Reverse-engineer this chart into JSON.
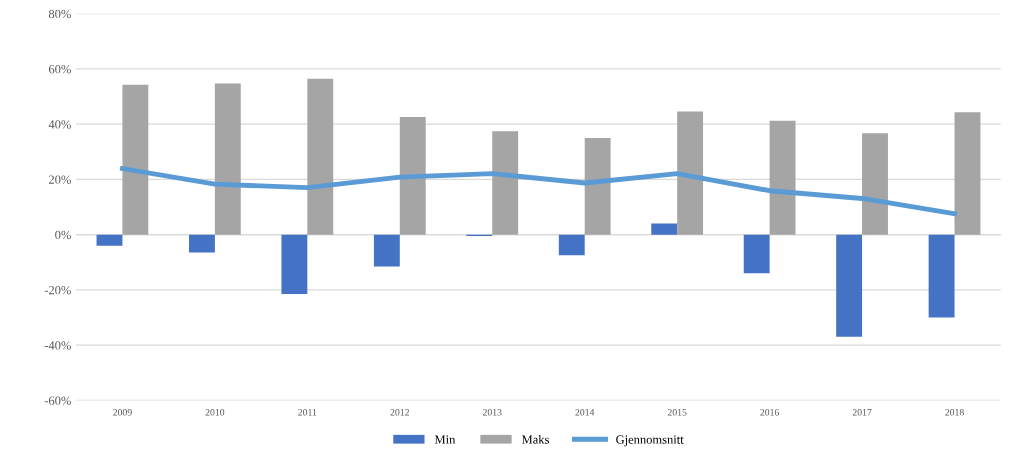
{
  "chart_data": {
    "type": "bar",
    "categories": [
      "2009",
      "2010",
      "2011",
      "2012",
      "2013",
      "2014",
      "2015",
      "2016",
      "2017",
      "2018"
    ],
    "series": [
      {
        "name": "Min",
        "color": "#4472c4",
        "values": [
          -4,
          -6.5,
          -21.5,
          -11.5,
          -0.5,
          -7.5,
          4,
          -14,
          -37,
          -30
        ]
      },
      {
        "name": "Maks",
        "color": "#a5a5a5",
        "values": [
          54.3,
          54.7,
          56.4,
          42.6,
          37.4,
          35,
          44.6,
          41.2,
          36.7,
          44.3
        ]
      },
      {
        "name": "Gjennomsnitt",
        "type": "line",
        "color": "#5b9bd5",
        "values": [
          23.9,
          18.3,
          17,
          20.8,
          22.1,
          18.7,
          22.1,
          15.9,
          13.1,
          7.6
        ]
      }
    ],
    "ylim": [
      -60,
      80
    ],
    "yticks": [
      {
        "value": -60,
        "label": "-60%"
      },
      {
        "value": -40,
        "label": "-40%"
      },
      {
        "value": -20,
        "label": "-20%"
      },
      {
        "value": 0,
        "label": "0%"
      },
      {
        "value": 20,
        "label": "20%"
      },
      {
        "value": 40,
        "label": "40%"
      },
      {
        "value": 60,
        "label": "60%"
      },
      {
        "value": 80,
        "label": "80%"
      }
    ],
    "grid": "y",
    "legend": "bottom",
    "marker": "none",
    "line_style": "solid"
  }
}
